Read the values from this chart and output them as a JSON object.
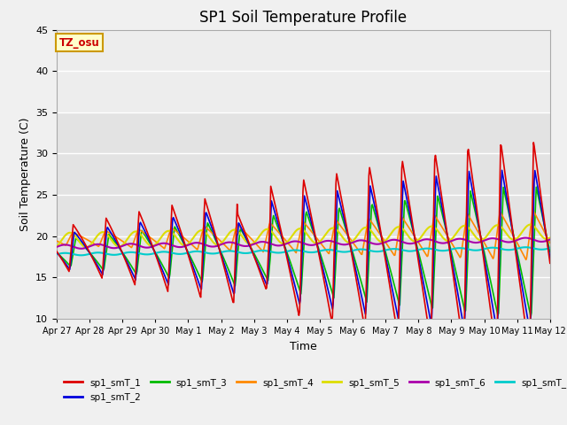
{
  "title": "SP1 Soil Temperature Profile",
  "xlabel": "Time",
  "ylabel": "Soil Temperature (C)",
  "ylim": [
    10,
    45
  ],
  "xlim": [
    0,
    15
  ],
  "annotation": "TZ_osu",
  "annotation_color": "#cc0000",
  "annotation_bg": "#ffffcc",
  "annotation_border": "#cc9900",
  "series": {
    "sp1_smT_1": {
      "color": "#dd0000",
      "lw": 1.2
    },
    "sp1_smT_2": {
      "color": "#0000dd",
      "lw": 1.2
    },
    "sp1_smT_3": {
      "color": "#00bb00",
      "lw": 1.2
    },
    "sp1_smT_4": {
      "color": "#ff8800",
      "lw": 1.2
    },
    "sp1_smT_5": {
      "color": "#dddd00",
      "lw": 1.5
    },
    "sp1_smT_6": {
      "color": "#aa00aa",
      "lw": 1.5
    },
    "sp1_smT_7": {
      "color": "#00cccc",
      "lw": 1.5
    }
  },
  "xtick_labels": [
    "Apr 27",
    "Apr 28",
    "Apr 29",
    "Apr 30",
    "May 1",
    "May 2",
    "May 3",
    "May 4",
    "May 5",
    "May 6",
    "May 7",
    "May 8",
    "May 9",
    "May 10",
    "May 11",
    "May 12"
  ],
  "xtick_positions": [
    0,
    1,
    2,
    3,
    4,
    5,
    6,
    7,
    8,
    9,
    10,
    11,
    12,
    13,
    14,
    15
  ],
  "background_color": "#f0f0f0",
  "plot_bg_lower": "#e8e8e8",
  "plot_bg_upper": "#f5f5f5",
  "grid_color": "#ffffff"
}
